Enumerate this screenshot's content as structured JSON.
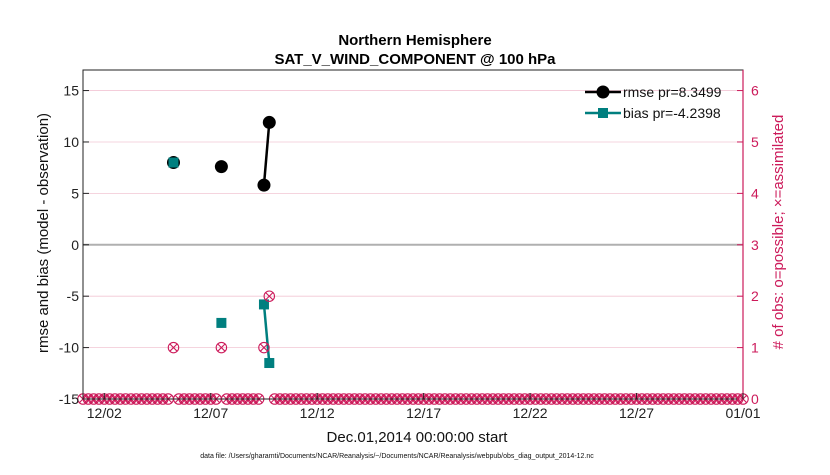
{
  "chart_data": {
    "type": "line",
    "title": "Northern Hemisphere",
    "subtitle": "SAT_V_WIND_COMPONENT @ 100 hPa",
    "xlabel": "Dec.01,2014 00:00:00 start",
    "ylabel": "rmse and bias (model - observation)",
    "ylabel_right": "# of obs: o=possible; ×=assimilated",
    "footnote": "data file: /Users/gharamti/Documents/NCAR/Reanalysis/~/Documents/NCAR/Reanalysis/webpub/obs_diag_output_2014-12.nc",
    "xlim": [
      0,
      31
    ],
    "ylim": [
      -15,
      17
    ],
    "ylim_right": [
      0,
      6.4
    ],
    "x_ticks": [
      {
        "value": 1,
        "label": "12/02"
      },
      {
        "value": 6,
        "label": "12/07"
      },
      {
        "value": 11,
        "label": "12/12"
      },
      {
        "value": 16,
        "label": "12/17"
      },
      {
        "value": 21,
        "label": "12/22"
      },
      {
        "value": 26,
        "label": "12/27"
      },
      {
        "value": 31,
        "label": "01/01"
      }
    ],
    "y_ticks": [
      -15,
      -10,
      -5,
      0,
      5,
      10,
      15
    ],
    "y_ticks_right": [
      0,
      1,
      2,
      3,
      4,
      5,
      6
    ],
    "legend_location": "top-right",
    "series": [
      {
        "name": "rmse pr=8.3499",
        "color": "#000000",
        "marker": "circle",
        "points": [
          {
            "x": 4.25,
            "y": 8.0
          },
          {
            "x": 6.5,
            "y": 7.6
          },
          {
            "x": 8.5,
            "y": 5.8
          },
          {
            "x": 8.75,
            "y": 11.9
          }
        ],
        "line_segments": [
          [
            2,
            3
          ]
        ]
      },
      {
        "name": "bias pr=-4.2398",
        "color": "#007f7f",
        "marker": "square",
        "points": [
          {
            "x": 4.25,
            "y": 8.0
          },
          {
            "x": 6.5,
            "y": -7.6
          },
          {
            "x": 8.5,
            "y": -5.8
          },
          {
            "x": 8.75,
            "y": -11.5
          }
        ],
        "line_segments": [
          [
            2,
            3
          ]
        ]
      }
    ],
    "obs_count": {
      "name": "# of obs",
      "color": "#cc1a5a",
      "x_start": 0,
      "x_step": 0.25,
      "x_end": 31,
      "nonzero": [
        {
          "x": 4.25,
          "possible": 1,
          "assimilated": 1
        },
        {
          "x": 6.5,
          "possible": 1,
          "assimilated": 1
        },
        {
          "x": 8.5,
          "possible": 1,
          "assimilated": 1
        },
        {
          "x": 8.75,
          "possible": 2,
          "assimilated": 2
        }
      ]
    }
  }
}
